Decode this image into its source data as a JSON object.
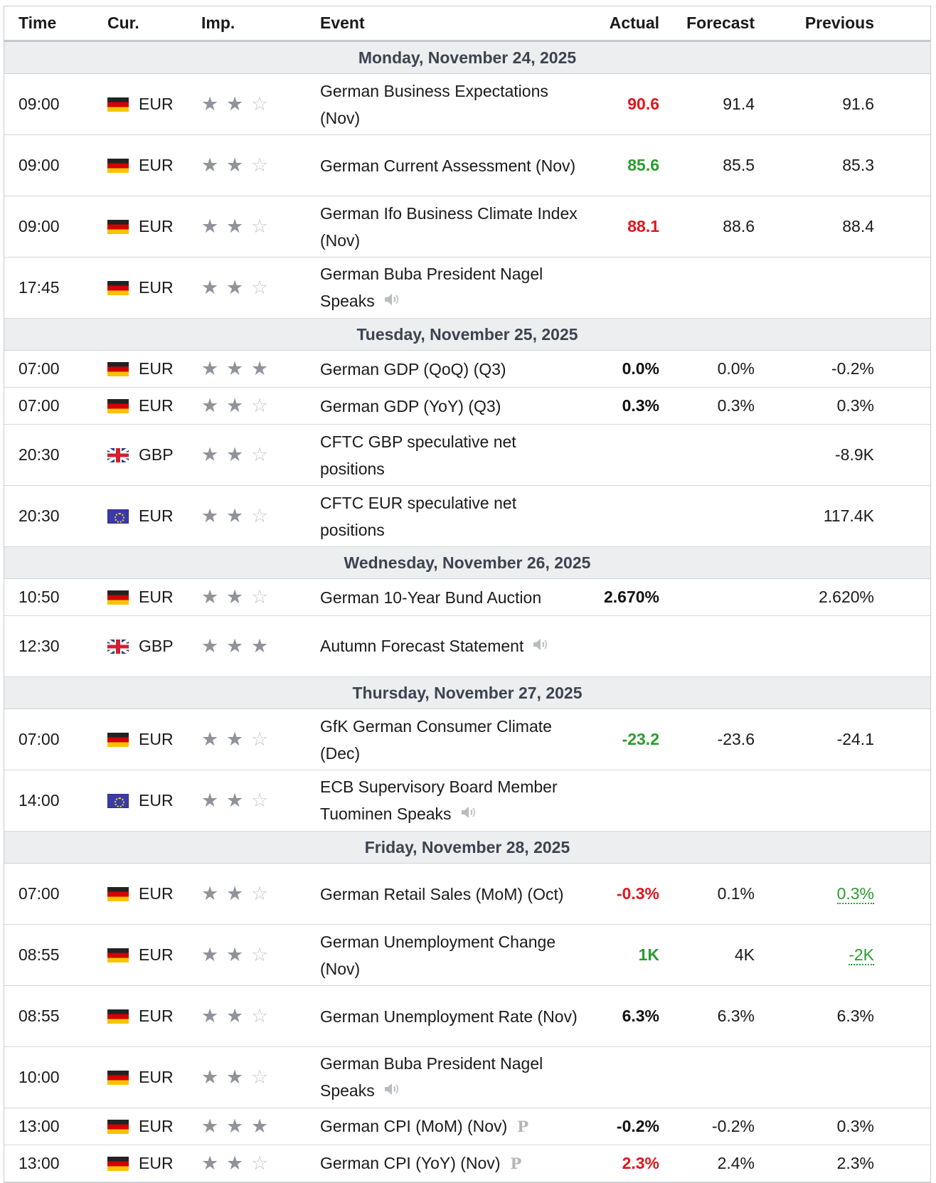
{
  "headers": {
    "time": "Time",
    "cur": "Cur.",
    "imp": "Imp.",
    "event": "Event",
    "actual": "Actual",
    "forecast": "Forecast",
    "previous": "Previous"
  },
  "days": [
    {
      "label": "Monday, November 24, 2025",
      "events": [
        {
          "time": "09:00",
          "flag": "de",
          "cur": "EUR",
          "imp": 2,
          "name": "German Business Expectations (Nov)",
          "speech": false,
          "prelim": false,
          "actual": "90.6",
          "actual_color": "red",
          "forecast": "91.4",
          "previous": "91.6",
          "previous_revised": false
        },
        {
          "time": "09:00",
          "flag": "de",
          "cur": "EUR",
          "imp": 2,
          "name": "German Current Assessment (Nov)",
          "speech": false,
          "prelim": false,
          "actual": "85.6",
          "actual_color": "green",
          "forecast": "85.5",
          "previous": "85.3",
          "previous_revised": false
        },
        {
          "time": "09:00",
          "flag": "de",
          "cur": "EUR",
          "imp": 2,
          "name": "German Ifo Business Climate Index (Nov)",
          "speech": false,
          "prelim": false,
          "actual": "88.1",
          "actual_color": "red",
          "forecast": "88.6",
          "previous": "88.4",
          "previous_revised": false
        },
        {
          "time": "17:45",
          "flag": "de",
          "cur": "EUR",
          "imp": 2,
          "name": "German Buba President Nagel Speaks",
          "speech": true,
          "prelim": false,
          "actual": "",
          "actual_color": "black",
          "forecast": "",
          "previous": "",
          "previous_revised": false
        }
      ]
    },
    {
      "label": "Tuesday, November 25, 2025",
      "events": [
        {
          "time": "07:00",
          "flag": "de",
          "cur": "EUR",
          "imp": 3,
          "name": "German GDP (QoQ) (Q3)",
          "speech": false,
          "prelim": false,
          "actual": "0.0%",
          "actual_color": "black",
          "forecast": "0.0%",
          "previous": "-0.2%",
          "previous_revised": false
        },
        {
          "time": "07:00",
          "flag": "de",
          "cur": "EUR",
          "imp": 2,
          "name": "German GDP (YoY) (Q3)",
          "speech": false,
          "prelim": false,
          "actual": "0.3%",
          "actual_color": "black",
          "forecast": "0.3%",
          "previous": "0.3%",
          "previous_revised": false
        },
        {
          "time": "20:30",
          "flag": "gb",
          "cur": "GBP",
          "imp": 2,
          "name": "CFTC GBP speculative net positions",
          "speech": false,
          "prelim": false,
          "actual": "",
          "actual_color": "black",
          "forecast": "",
          "previous": "-8.9K",
          "previous_revised": false
        },
        {
          "time": "20:30",
          "flag": "eu",
          "cur": "EUR",
          "imp": 2,
          "name": "CFTC EUR speculative net positions",
          "speech": false,
          "prelim": false,
          "actual": "",
          "actual_color": "black",
          "forecast": "",
          "previous": "117.4K",
          "previous_revised": false
        }
      ]
    },
    {
      "label": "Wednesday, November 26, 2025",
      "events": [
        {
          "time": "10:50",
          "flag": "de",
          "cur": "EUR",
          "imp": 2,
          "name": "German 10-Year Bund Auction",
          "speech": false,
          "prelim": false,
          "actual": "2.670%",
          "actual_color": "black",
          "forecast": "",
          "previous": "2.620%",
          "previous_revised": false
        },
        {
          "time": "12:30",
          "flag": "gb",
          "cur": "GBP",
          "imp": 3,
          "name": "Autumn Forecast Statement",
          "speech": true,
          "prelim": false,
          "actual": "",
          "actual_color": "black",
          "forecast": "",
          "previous": "",
          "previous_revised": false
        }
      ]
    },
    {
      "label": "Thursday, November 27, 2025",
      "events": [
        {
          "time": "07:00",
          "flag": "de",
          "cur": "EUR",
          "imp": 2,
          "name": "GfK German Consumer Climate (Dec)",
          "speech": false,
          "prelim": false,
          "actual": "-23.2",
          "actual_color": "green",
          "forecast": "-23.6",
          "previous": "-24.1",
          "previous_revised": false
        },
        {
          "time": "14:00",
          "flag": "eu",
          "cur": "EUR",
          "imp": 2,
          "name": "ECB Supervisory Board Member Tuominen Speaks",
          "speech": true,
          "prelim": false,
          "actual": "",
          "actual_color": "black",
          "forecast": "",
          "previous": "",
          "previous_revised": false
        }
      ]
    },
    {
      "label": "Friday, November 28, 2025",
      "events": [
        {
          "time": "07:00",
          "flag": "de",
          "cur": "EUR",
          "imp": 2,
          "name": "German Retail Sales (MoM) (Oct)",
          "speech": false,
          "prelim": false,
          "actual": "-0.3%",
          "actual_color": "red",
          "forecast": "0.1%",
          "previous": "0.3%",
          "previous_revised": true
        },
        {
          "time": "08:55",
          "flag": "de",
          "cur": "EUR",
          "imp": 2,
          "name": "German Unemployment Change (Nov)",
          "speech": false,
          "prelim": false,
          "actual": "1K",
          "actual_color": "green",
          "forecast": "4K",
          "previous": "-2K",
          "previous_revised": true
        },
        {
          "time": "08:55",
          "flag": "de",
          "cur": "EUR",
          "imp": 2,
          "name": "German Unemployment Rate (Nov)",
          "speech": false,
          "prelim": false,
          "actual": "6.3%",
          "actual_color": "black",
          "forecast": "6.3%",
          "previous": "6.3%",
          "previous_revised": false
        },
        {
          "time": "10:00",
          "flag": "de",
          "cur": "EUR",
          "imp": 2,
          "name": "German Buba President Nagel Speaks",
          "speech": true,
          "prelim": false,
          "actual": "",
          "actual_color": "black",
          "forecast": "",
          "previous": "",
          "previous_revised": false
        },
        {
          "time": "13:00",
          "flag": "de",
          "cur": "EUR",
          "imp": 3,
          "name": "German CPI (MoM) (Nov)",
          "speech": false,
          "prelim": true,
          "actual": "-0.2%",
          "actual_color": "black",
          "forecast": "-0.2%",
          "previous": "0.3%",
          "previous_revised": false
        },
        {
          "time": "13:00",
          "flag": "de",
          "cur": "EUR",
          "imp": 2,
          "name": "German CPI (YoY) (Nov)",
          "speech": false,
          "prelim": true,
          "actual": "2.3%",
          "actual_color": "red",
          "forecast": "2.4%",
          "previous": "2.3%",
          "previous_revised": false
        }
      ]
    }
  ],
  "prelim_mark": "P"
}
